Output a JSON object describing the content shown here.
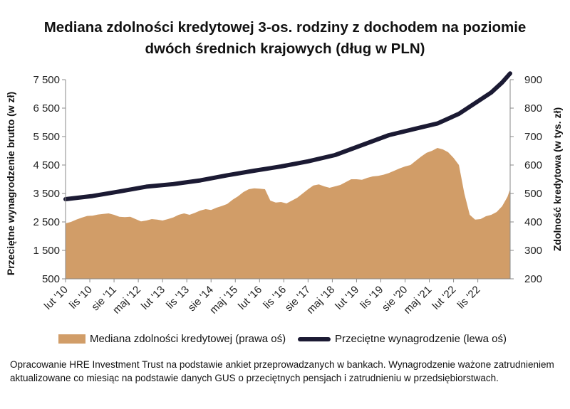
{
  "chart_data": {
    "type": "area+line",
    "title_lines": [
      "Mediana zdolności kredytowej 3-os. rodziny z dochodem na poziomie",
      "dwóch średnich krajowych (dług w PLN)"
    ],
    "left_axis": {
      "label": "Przeciętne wynagrodzenie brutto (w zł)",
      "ticks": [
        7500,
        6500,
        5500,
        4500,
        3500,
        2500,
        1500,
        500
      ],
      "tick_labels": [
        "7 500",
        "6 500",
        "5 500",
        "4 500",
        "3 500",
        "2 500",
        "1 500",
        "500"
      ],
      "ylim": [
        500,
        7500
      ]
    },
    "right_axis": {
      "label": "Zdolność kredytowa (w tys. zł)",
      "ticks": [
        900,
        800,
        700,
        600,
        500,
        400,
        300,
        200
      ],
      "tick_labels": [
        "900",
        "800",
        "700",
        "600",
        "500",
        "400",
        "300",
        "200"
      ],
      "ylim": [
        200,
        900
      ]
    },
    "x_tick_labels": [
      "lut '10",
      "lis '10",
      "sie '11",
      "maj '12",
      "lut '13",
      "lis '13",
      "sie '14",
      "maj '15",
      "lut '16",
      "lis '16",
      "sie '17",
      "maj '18",
      "lut '19",
      "lis '19",
      "sie '20",
      "maj '21",
      "lut '22",
      "lis '22"
    ],
    "x_range_months": [
      0,
      155
    ],
    "series": [
      {
        "name": "Mediana zdolności kredytowej (prawa oś)",
        "type": "area",
        "axis": "right",
        "color": "#d19d68",
        "points": [
          [
            0,
            395
          ],
          [
            2,
            400
          ],
          [
            4,
            408
          ],
          [
            6,
            415
          ],
          [
            8,
            421
          ],
          [
            10,
            422
          ],
          [
            12,
            426
          ],
          [
            14,
            428
          ],
          [
            16,
            430
          ],
          [
            18,
            425
          ],
          [
            20,
            418
          ],
          [
            22,
            417
          ],
          [
            24,
            418
          ],
          [
            26,
            410
          ],
          [
            28,
            402
          ],
          [
            30,
            405
          ],
          [
            32,
            410
          ],
          [
            34,
            408
          ],
          [
            36,
            405
          ],
          [
            38,
            410
          ],
          [
            40,
            416
          ],
          [
            42,
            425
          ],
          [
            44,
            430
          ],
          [
            46,
            425
          ],
          [
            48,
            432
          ],
          [
            50,
            440
          ],
          [
            52,
            445
          ],
          [
            54,
            442
          ],
          [
            56,
            450
          ],
          [
            58,
            456
          ],
          [
            60,
            463
          ],
          [
            62,
            478
          ],
          [
            64,
            490
          ],
          [
            66,
            505
          ],
          [
            68,
            515
          ],
          [
            70,
            518
          ],
          [
            72,
            517
          ],
          [
            74,
            515
          ],
          [
            76,
            475
          ],
          [
            78,
            468
          ],
          [
            80,
            470
          ],
          [
            82,
            465
          ],
          [
            84,
            475
          ],
          [
            86,
            485
          ],
          [
            88,
            500
          ],
          [
            90,
            515
          ],
          [
            92,
            528
          ],
          [
            94,
            532
          ],
          [
            96,
            525
          ],
          [
            98,
            520
          ],
          [
            100,
            525
          ],
          [
            102,
            530
          ],
          [
            104,
            540
          ],
          [
            106,
            550
          ],
          [
            108,
            550
          ],
          [
            110,
            548
          ],
          [
            112,
            555
          ],
          [
            114,
            560
          ],
          [
            116,
            562
          ],
          [
            118,
            566
          ],
          [
            120,
            572
          ],
          [
            122,
            580
          ],
          [
            124,
            588
          ],
          [
            126,
            595
          ],
          [
            128,
            600
          ],
          [
            130,
            615
          ],
          [
            132,
            630
          ],
          [
            134,
            643
          ],
          [
            136,
            650
          ],
          [
            138,
            660
          ],
          [
            140,
            655
          ],
          [
            142,
            645
          ],
          [
            144,
            625
          ],
          [
            146,
            600
          ],
          [
            148,
            500
          ],
          [
            150,
            425
          ],
          [
            152,
            408
          ],
          [
            154,
            410
          ],
          [
            156,
            420
          ],
          [
            158,
            425
          ],
          [
            160,
            435
          ],
          [
            162,
            455
          ],
          [
            164,
            488
          ],
          [
            165,
            515
          ]
        ]
      },
      {
        "name": "Przeciętne wynagrodzenie (lewa oś)",
        "type": "line",
        "axis": "left",
        "color": "#1b1a33",
        "points": [
          [
            0,
            3300
          ],
          [
            10,
            3410
          ],
          [
            20,
            3570
          ],
          [
            30,
            3740
          ],
          [
            40,
            3830
          ],
          [
            50,
            3960
          ],
          [
            60,
            4140
          ],
          [
            70,
            4300
          ],
          [
            80,
            4450
          ],
          [
            90,
            4630
          ],
          [
            100,
            4850
          ],
          [
            110,
            5200
          ],
          [
            120,
            5550
          ],
          [
            130,
            5780
          ],
          [
            138,
            5960
          ],
          [
            146,
            6300
          ],
          [
            154,
            6800
          ],
          [
            158,
            7050
          ],
          [
            162,
            7400
          ],
          [
            165,
            7720
          ]
        ]
      }
    ],
    "legend": [
      {
        "label": "Mediana zdolności kredytowej (prawa oś)",
        "color": "#d19d68"
      },
      {
        "label": "Przeciętne wynagrodzenie (lewa oś)",
        "color": "#1b1a33"
      }
    ],
    "grid": false
  },
  "note_text": "Opracowanie HRE Investment Trust na podstawie ankiet przeprowadzanych w bankach. Wynagrodzenie ważone zatrudnieniem aktualizowane co miesiąc na podstawie danych GUS o przeciętnych pensjach i zatrudnieniu w przedsiębiorstwach."
}
